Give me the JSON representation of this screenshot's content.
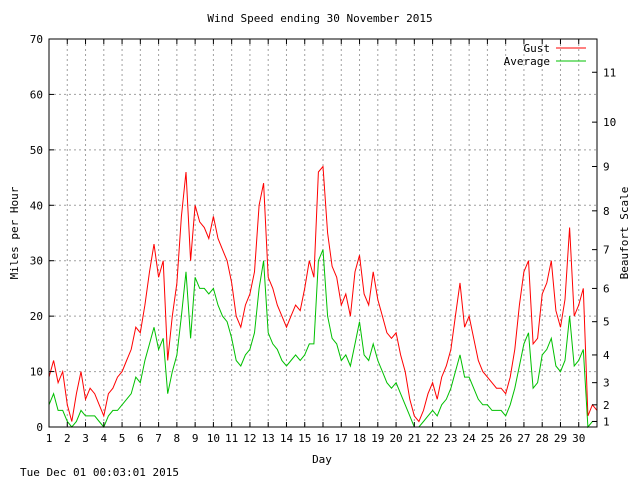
{
  "chart_data": {
    "type": "line",
    "title": "Wind Speed ending 30 November 2015",
    "xlabel": "Day",
    "ylabel": "Miles per Hour",
    "y2label": "Beaufort Scale",
    "footer": "Tue Dec 01 00:03:01 2015",
    "xlim": [
      1,
      31
    ],
    "ylim": [
      0,
      70
    ],
    "grid": true,
    "legend_position": "top-right",
    "x_ticks": [
      "1",
      "2",
      "3",
      "4",
      "5",
      "6",
      "7",
      "8",
      "9",
      "10",
      "11",
      "12",
      "13",
      "14",
      "15",
      "16",
      "17",
      "18",
      "19",
      "20",
      "21",
      "22",
      "23",
      "24",
      "25",
      "26",
      "27",
      "28",
      "29",
      "30"
    ],
    "y_ticks": [
      "0",
      "10",
      "20",
      "30",
      "40",
      "50",
      "60",
      "70"
    ],
    "beaufort_ticks": [
      {
        "label": "1",
        "mph": 1
      },
      {
        "label": "2",
        "mph": 4
      },
      {
        "label": "3",
        "mph": 8
      },
      {
        "label": "4",
        "mph": 13
      },
      {
        "label": "5",
        "mph": 19
      },
      {
        "label": "6",
        "mph": 25
      },
      {
        "label": "7",
        "mph": 32
      },
      {
        "label": "8",
        "mph": 39
      },
      {
        "label": "9",
        "mph": 47
      },
      {
        "label": "10",
        "mph": 55
      },
      {
        "label": "11",
        "mph": 64
      }
    ],
    "series": [
      {
        "name": "Gust",
        "color": "#ff0000",
        "points": [
          [
            1.0,
            9
          ],
          [
            1.25,
            12
          ],
          [
            1.5,
            8
          ],
          [
            1.75,
            10
          ],
          [
            2.0,
            4
          ],
          [
            2.25,
            1
          ],
          [
            2.5,
            6
          ],
          [
            2.75,
            10
          ],
          [
            3.0,
            5
          ],
          [
            3.25,
            7
          ],
          [
            3.5,
            6
          ],
          [
            3.75,
            4
          ],
          [
            4.0,
            2
          ],
          [
            4.25,
            6
          ],
          [
            4.5,
            7
          ],
          [
            4.75,
            9
          ],
          [
            5.0,
            10
          ],
          [
            5.25,
            12
          ],
          [
            5.5,
            14
          ],
          [
            5.75,
            18
          ],
          [
            6.0,
            17
          ],
          [
            6.25,
            22
          ],
          [
            6.5,
            28
          ],
          [
            6.75,
            33
          ],
          [
            7.0,
            27
          ],
          [
            7.25,
            30
          ],
          [
            7.5,
            12
          ],
          [
            7.75,
            20
          ],
          [
            8.0,
            26
          ],
          [
            8.25,
            38
          ],
          [
            8.5,
            46
          ],
          [
            8.75,
            30
          ],
          [
            9.0,
            40
          ],
          [
            9.25,
            37
          ],
          [
            9.5,
            36
          ],
          [
            9.75,
            34
          ],
          [
            10.0,
            38
          ],
          [
            10.25,
            34
          ],
          [
            10.5,
            32
          ],
          [
            10.75,
            30
          ],
          [
            11.0,
            26
          ],
          [
            11.25,
            20
          ],
          [
            11.5,
            18
          ],
          [
            11.75,
            22
          ],
          [
            12.0,
            24
          ],
          [
            12.25,
            28
          ],
          [
            12.5,
            40
          ],
          [
            12.75,
            44
          ],
          [
            13.0,
            27
          ],
          [
            13.25,
            25
          ],
          [
            13.5,
            22
          ],
          [
            13.75,
            20
          ],
          [
            14.0,
            18
          ],
          [
            14.25,
            20
          ],
          [
            14.5,
            22
          ],
          [
            14.75,
            21
          ],
          [
            15.0,
            25
          ],
          [
            15.25,
            30
          ],
          [
            15.5,
            27
          ],
          [
            15.75,
            46
          ],
          [
            16.0,
            47
          ],
          [
            16.25,
            35
          ],
          [
            16.5,
            29
          ],
          [
            16.75,
            27
          ],
          [
            17.0,
            22
          ],
          [
            17.25,
            24
          ],
          [
            17.5,
            20
          ],
          [
            17.75,
            28
          ],
          [
            18.0,
            31
          ],
          [
            18.25,
            24
          ],
          [
            18.5,
            22
          ],
          [
            18.75,
            28
          ],
          [
            19.0,
            23
          ],
          [
            19.25,
            20
          ],
          [
            19.5,
            17
          ],
          [
            19.75,
            16
          ],
          [
            20.0,
            17
          ],
          [
            20.25,
            13
          ],
          [
            20.5,
            10
          ],
          [
            20.75,
            5
          ],
          [
            21.0,
            2
          ],
          [
            21.25,
            1
          ],
          [
            21.5,
            3
          ],
          [
            21.75,
            6
          ],
          [
            22.0,
            8
          ],
          [
            22.25,
            5
          ],
          [
            22.5,
            9
          ],
          [
            22.75,
            11
          ],
          [
            23.0,
            14
          ],
          [
            23.25,
            20
          ],
          [
            23.5,
            26
          ],
          [
            23.75,
            18
          ],
          [
            24.0,
            20
          ],
          [
            24.25,
            16
          ],
          [
            24.5,
            12
          ],
          [
            24.75,
            10
          ],
          [
            25.0,
            9
          ],
          [
            25.25,
            8
          ],
          [
            25.5,
            7
          ],
          [
            25.75,
            7
          ],
          [
            26.0,
            6
          ],
          [
            26.25,
            9
          ],
          [
            26.5,
            14
          ],
          [
            26.75,
            22
          ],
          [
            27.0,
            28
          ],
          [
            27.25,
            30
          ],
          [
            27.5,
            15
          ],
          [
            27.75,
            16
          ],
          [
            28.0,
            24
          ],
          [
            28.25,
            26
          ],
          [
            28.5,
            30
          ],
          [
            28.75,
            21
          ],
          [
            29.0,
            18
          ],
          [
            29.25,
            23
          ],
          [
            29.5,
            36
          ],
          [
            29.75,
            20
          ],
          [
            30.0,
            22
          ],
          [
            30.25,
            25
          ],
          [
            30.5,
            2
          ],
          [
            30.75,
            4
          ],
          [
            31.0,
            3
          ]
        ]
      },
      {
        "name": "Average",
        "color": "#00c000",
        "points": [
          [
            1.0,
            4
          ],
          [
            1.25,
            6
          ],
          [
            1.5,
            3
          ],
          [
            1.75,
            3
          ],
          [
            2.0,
            1
          ],
          [
            2.25,
            0
          ],
          [
            2.5,
            1
          ],
          [
            2.75,
            3
          ],
          [
            3.0,
            2
          ],
          [
            3.25,
            2
          ],
          [
            3.5,
            2
          ],
          [
            3.75,
            1
          ],
          [
            4.0,
            0
          ],
          [
            4.25,
            2
          ],
          [
            4.5,
            3
          ],
          [
            4.75,
            3
          ],
          [
            5.0,
            4
          ],
          [
            5.25,
            5
          ],
          [
            5.5,
            6
          ],
          [
            5.75,
            9
          ],
          [
            6.0,
            8
          ],
          [
            6.25,
            12
          ],
          [
            6.5,
            15
          ],
          [
            6.75,
            18
          ],
          [
            7.0,
            14
          ],
          [
            7.25,
            16
          ],
          [
            7.5,
            6
          ],
          [
            7.75,
            10
          ],
          [
            8.0,
            13
          ],
          [
            8.25,
            20
          ],
          [
            8.5,
            28
          ],
          [
            8.75,
            16
          ],
          [
            9.0,
            27
          ],
          [
            9.25,
            25
          ],
          [
            9.5,
            25
          ],
          [
            9.75,
            24
          ],
          [
            10.0,
            25
          ],
          [
            10.25,
            22
          ],
          [
            10.5,
            20
          ],
          [
            10.75,
            19
          ],
          [
            11.0,
            16
          ],
          [
            11.25,
            12
          ],
          [
            11.5,
            11
          ],
          [
            11.75,
            13
          ],
          [
            12.0,
            14
          ],
          [
            12.25,
            17
          ],
          [
            12.5,
            25
          ],
          [
            12.75,
            30
          ],
          [
            13.0,
            17
          ],
          [
            13.25,
            15
          ],
          [
            13.5,
            14
          ],
          [
            13.75,
            12
          ],
          [
            14.0,
            11
          ],
          [
            14.25,
            12
          ],
          [
            14.5,
            13
          ],
          [
            14.75,
            12
          ],
          [
            15.0,
            13
          ],
          [
            15.25,
            15
          ],
          [
            15.5,
            15
          ],
          [
            15.75,
            30
          ],
          [
            16.0,
            32
          ],
          [
            16.25,
            20
          ],
          [
            16.5,
            16
          ],
          [
            16.75,
            15
          ],
          [
            17.0,
            12
          ],
          [
            17.25,
            13
          ],
          [
            17.5,
            11
          ],
          [
            17.75,
            15
          ],
          [
            18.0,
            19
          ],
          [
            18.25,
            13
          ],
          [
            18.5,
            12
          ],
          [
            18.75,
            15
          ],
          [
            19.0,
            12
          ],
          [
            19.25,
            10
          ],
          [
            19.5,
            8
          ],
          [
            19.75,
            7
          ],
          [
            20.0,
            8
          ],
          [
            20.25,
            6
          ],
          [
            20.5,
            4
          ],
          [
            20.75,
            2
          ],
          [
            21.0,
            0
          ],
          [
            21.25,
            0
          ],
          [
            21.5,
            1
          ],
          [
            21.75,
            2
          ],
          [
            22.0,
            3
          ],
          [
            22.25,
            2
          ],
          [
            22.5,
            4
          ],
          [
            22.75,
            5
          ],
          [
            23.0,
            7
          ],
          [
            23.25,
            10
          ],
          [
            23.5,
            13
          ],
          [
            23.75,
            9
          ],
          [
            24.0,
            9
          ],
          [
            24.25,
            7
          ],
          [
            24.5,
            5
          ],
          [
            24.75,
            4
          ],
          [
            25.0,
            4
          ],
          [
            25.25,
            3
          ],
          [
            25.5,
            3
          ],
          [
            25.75,
            3
          ],
          [
            26.0,
            2
          ],
          [
            26.25,
            4
          ],
          [
            26.5,
            7
          ],
          [
            26.75,
            11
          ],
          [
            27.0,
            15
          ],
          [
            27.25,
            17
          ],
          [
            27.5,
            7
          ],
          [
            27.75,
            8
          ],
          [
            28.0,
            13
          ],
          [
            28.25,
            14
          ],
          [
            28.5,
            16
          ],
          [
            28.75,
            11
          ],
          [
            29.0,
            10
          ],
          [
            29.25,
            12
          ],
          [
            29.5,
            20
          ],
          [
            29.75,
            11
          ],
          [
            30.0,
            12
          ],
          [
            30.25,
            14
          ],
          [
            30.5,
            0
          ],
          [
            30.75,
            1
          ],
          [
            31.0,
            1
          ]
        ]
      }
    ]
  }
}
